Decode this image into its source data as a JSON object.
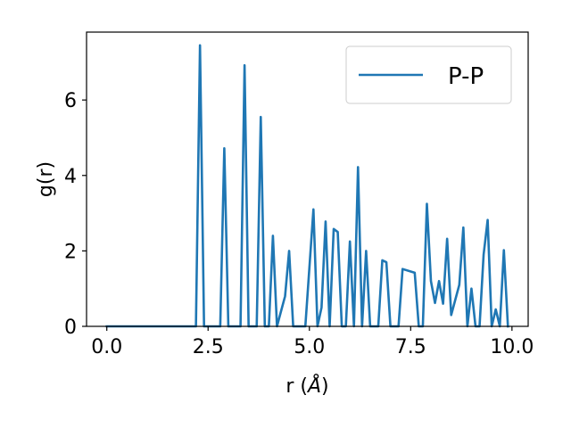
{
  "chart_data": {
    "type": "line",
    "title": "",
    "xlabel_prefix": "r (",
    "xlabel_unit": "Å",
    "xlabel_suffix": ")",
    "ylabel": "g(r)",
    "xlim": [
      -0.5,
      10.4
    ],
    "ylim": [
      0,
      7.8
    ],
    "xticks": [
      0.0,
      2.5,
      5.0,
      7.5,
      10.0
    ],
    "xtick_labels": [
      "0.0",
      "2.5",
      "5.0",
      "7.5",
      "10.0"
    ],
    "yticks": [
      0,
      2,
      4,
      6
    ],
    "ytick_labels": [
      "0",
      "2",
      "4",
      "6"
    ],
    "grid": false,
    "legend_position": "top-right",
    "series": [
      {
        "name": "P-P",
        "color": "#1f77b4",
        "x": [
          0.0,
          2.2,
          2.3,
          2.4,
          2.8,
          2.9,
          3.0,
          3.3,
          3.4,
          3.5,
          3.7,
          3.8,
          3.9,
          4.0,
          4.1,
          4.2,
          4.4,
          4.5,
          4.6,
          4.9,
          5.1,
          5.2,
          5.3,
          5.4,
          5.5,
          5.6,
          5.7,
          5.8,
          5.9,
          6.0,
          6.1,
          6.2,
          6.3,
          6.4,
          6.5,
          6.6,
          6.7,
          6.8,
          6.9,
          7.0,
          7.2,
          7.3,
          7.6,
          7.7,
          7.8,
          7.9,
          8.0,
          8.1,
          8.2,
          8.3,
          8.4,
          8.5,
          8.7,
          8.8,
          8.9,
          9.0,
          9.1,
          9.2,
          9.3,
          9.4,
          9.5,
          9.6,
          9.7,
          9.8,
          9.9
        ],
        "y": [
          0.0,
          0.0,
          7.45,
          0.0,
          0.0,
          4.72,
          0.0,
          0.0,
          6.92,
          0.0,
          0.0,
          5.55,
          0.0,
          0.0,
          2.4,
          0.0,
          0.8,
          2.0,
          0.0,
          0.0,
          3.1,
          0.0,
          0.5,
          2.78,
          0.0,
          2.58,
          2.5,
          0.0,
          0.0,
          2.25,
          0.0,
          4.22,
          0.0,
          2.0,
          0.0,
          0.0,
          0.0,
          1.75,
          1.7,
          0.0,
          0.0,
          1.52,
          1.42,
          0.0,
          0.0,
          3.25,
          1.2,
          0.62,
          1.2,
          0.6,
          2.32,
          0.3,
          1.1,
          2.62,
          0.0,
          1.0,
          0.0,
          0.0,
          1.9,
          2.82,
          0.0,
          0.45,
          0.0,
          2.02,
          0.0
        ]
      }
    ]
  }
}
